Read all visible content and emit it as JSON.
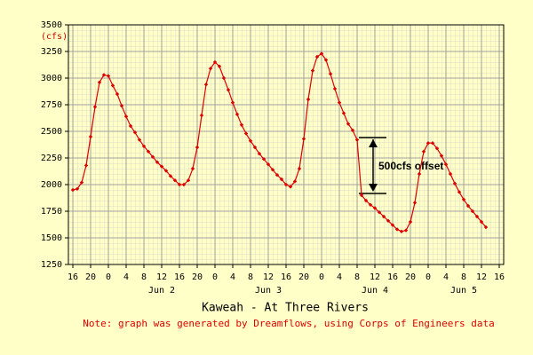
{
  "chart_data": {
    "type": "line",
    "title": "Kaweah - At Three Rivers",
    "note": "Note: graph was generated by Dreamflows, using Corps of Engineers data",
    "y_unit_label": "(cfs)",
    "annotation": "500cfs offset",
    "xlim": [
      -1,
      97
    ],
    "ylim": [
      1250,
      3500
    ],
    "yticks": [
      1250,
      1500,
      1750,
      2000,
      2250,
      2500,
      2750,
      3000,
      3250,
      3500
    ],
    "xticks": [
      {
        "value": 0,
        "label": "16"
      },
      {
        "value": 4,
        "label": "20"
      },
      {
        "value": 8,
        "label": "0"
      },
      {
        "value": 12,
        "label": "4"
      },
      {
        "value": 16,
        "label": "8"
      },
      {
        "value": 20,
        "label": "12"
      },
      {
        "value": 24,
        "label": "16"
      },
      {
        "value": 28,
        "label": "20"
      },
      {
        "value": 32,
        "label": "0"
      },
      {
        "value": 36,
        "label": "4"
      },
      {
        "value": 40,
        "label": "8"
      },
      {
        "value": 44,
        "label": "12"
      },
      {
        "value": 48,
        "label": "16"
      },
      {
        "value": 52,
        "label": "20"
      },
      {
        "value": 56,
        "label": "0"
      },
      {
        "value": 60,
        "label": "4"
      },
      {
        "value": 64,
        "label": "8"
      },
      {
        "value": 68,
        "label": "12"
      },
      {
        "value": 72,
        "label": "16"
      },
      {
        "value": 76,
        "label": "20"
      },
      {
        "value": 80,
        "label": "0"
      },
      {
        "value": 84,
        "label": "4"
      },
      {
        "value": 88,
        "label": "8"
      },
      {
        "value": 92,
        "label": "12"
      },
      {
        "value": 96,
        "label": "16"
      }
    ],
    "day_labels": [
      {
        "value": 20,
        "label": "Jun 2"
      },
      {
        "value": 44,
        "label": "Jun 3"
      },
      {
        "value": 68,
        "label": "Jun 4"
      },
      {
        "value": 88,
        "label": "Jun 5"
      }
    ],
    "grid": true,
    "series": [
      {
        "name": "Kaweah - At Three Rivers",
        "color": "#dd0000",
        "x": [
          0,
          1,
          2,
          3,
          4,
          5,
          6,
          7,
          8,
          9,
          10,
          11,
          12,
          13,
          14,
          15,
          16,
          17,
          18,
          19,
          20,
          21,
          22,
          23,
          24,
          25,
          26,
          27,
          28,
          29,
          30,
          31,
          32,
          33,
          34,
          35,
          36,
          37,
          38,
          39,
          40,
          41,
          42,
          43,
          44,
          45,
          46,
          47,
          48,
          49,
          50,
          51,
          52,
          53,
          54,
          55,
          56,
          57,
          58,
          59,
          60,
          61,
          62,
          63,
          64,
          65,
          66,
          67,
          68,
          69,
          70,
          71,
          72,
          73,
          74,
          75,
          76,
          77,
          78,
          79,
          80,
          81,
          82,
          83,
          84,
          85,
          86,
          87,
          88,
          89,
          90,
          91,
          92,
          93
        ],
        "values": [
          1950,
          1960,
          2020,
          2180,
          2450,
          2730,
          2960,
          3030,
          3020,
          2930,
          2850,
          2740,
          2640,
          2550,
          2490,
          2420,
          2360,
          2310,
          2260,
          2210,
          2170,
          2130,
          2080,
          2040,
          2000,
          2000,
          2040,
          2150,
          2350,
          2650,
          2940,
          3090,
          3150,
          3110,
          3000,
          2890,
          2770,
          2660,
          2560,
          2480,
          2410,
          2350,
          2290,
          2240,
          2190,
          2140,
          2090,
          2050,
          2000,
          1980,
          2030,
          2150,
          2430,
          2800,
          3070,
          3200,
          3230,
          3170,
          3040,
          2900,
          2770,
          2670,
          2570,
          2510,
          2420,
          1900,
          1850,
          1810,
          1780,
          1740,
          1700,
          1660,
          1620,
          1580,
          1560,
          1570,
          1650,
          1830,
          2100,
          2310,
          2390,
          2390,
          2340,
          2270,
          2190,
          2100,
          2010,
          1930,
          1860,
          1800,
          1750,
          1700,
          1650,
          1600
        ]
      }
    ]
  }
}
